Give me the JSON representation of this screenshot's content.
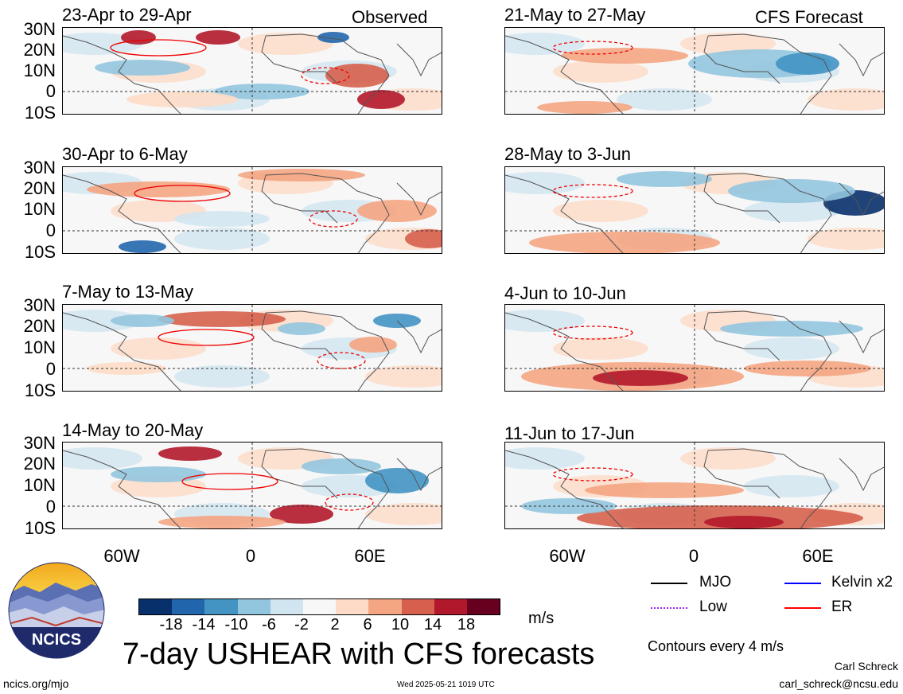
{
  "panels_left": [
    {
      "title": "23-Apr to 29-Apr",
      "tag": "Observed"
    },
    {
      "title": "30-Apr to 6-May",
      "tag": ""
    },
    {
      "title": "7-May to 13-May",
      "tag": ""
    },
    {
      "title": "14-May to 20-May",
      "tag": ""
    }
  ],
  "panels_right": [
    {
      "title": "21-May to 27-May",
      "tag": "CFS Forecast"
    },
    {
      "title": "28-May to 3-Jun",
      "tag": ""
    },
    {
      "title": "4-Jun to 10-Jun",
      "tag": ""
    },
    {
      "title": "11-Jun to 17-Jun",
      "tag": ""
    }
  ],
  "lat_labels": [
    "30N",
    "20N",
    "10N",
    "0",
    "10S"
  ],
  "lon_labels": [
    "60W",
    "0",
    "60E"
  ],
  "colorbar": {
    "colors": [
      "#08306b",
      "#2166ac",
      "#4393c3",
      "#92c5de",
      "#d1e5f0",
      "#f7f7f7",
      "#fddbc7",
      "#f4a582",
      "#d6604d",
      "#b2182b",
      "#67001f"
    ],
    "labels": [
      "-18",
      "-14",
      "-10",
      "-6",
      "-2",
      "2",
      "6",
      "10",
      "14",
      "18"
    ],
    "units": "m/s"
  },
  "title": "7-day USHEAR with CFS forecasts",
  "legend": [
    {
      "label": "MJO",
      "color": "#000000"
    },
    {
      "label": "Kelvin x2",
      "color": "#0000ff"
    },
    {
      "label": "Low",
      "color": "#a020f0"
    },
    {
      "label": "ER",
      "color": "#ff0000"
    }
  ],
  "contour_note": "Contours every 4 m/s",
  "logo_text": "NCICS",
  "footer": {
    "url": "ncics.org/mjo",
    "timestamp": "Wed 2025-05-21 1019 UTC",
    "author": "Carl Schreck",
    "email": "carl_schreck@ncsu.edu"
  }
}
